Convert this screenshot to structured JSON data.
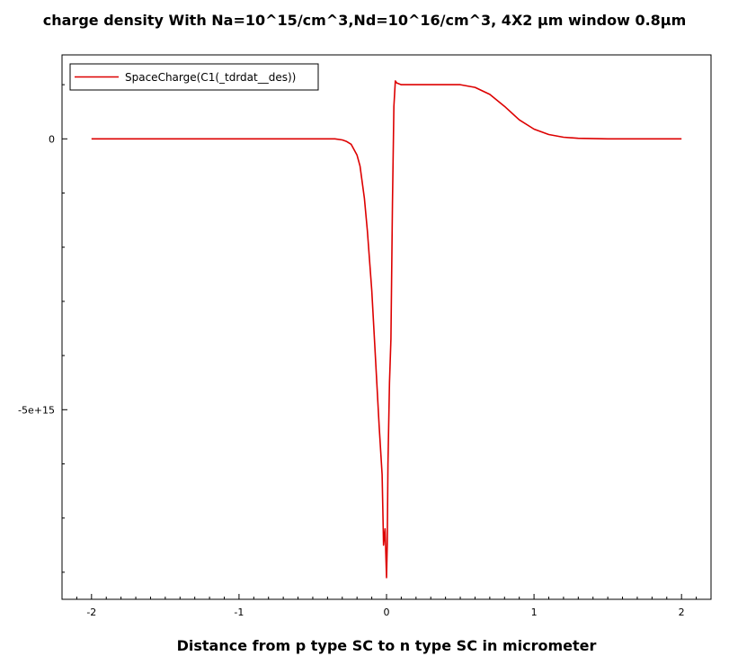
{
  "chart_data": {
    "type": "line",
    "title": "charge density With Na=10^15/cm^3,Nd=10^16/cm^3, 4X2 µm window 0.8µm",
    "xlabel": "Distance from p type SC to n type SC in micrometer",
    "ylabel": "",
    "xlim": [
      -2.2,
      2.2
    ],
    "ylim": [
      -8500000000000000.0,
      1550000000000000.0
    ],
    "x_ticks": [
      {
        "value": -2,
        "label": "-2"
      },
      {
        "value": -1,
        "label": "-1"
      },
      {
        "value": 0,
        "label": "0"
      },
      {
        "value": 1,
        "label": "1"
      },
      {
        "value": 2,
        "label": "2"
      }
    ],
    "y_ticks": [
      {
        "value": 0,
        "label": "0"
      },
      {
        "value": -5000000000000000.0,
        "label": "-5e+15"
      }
    ],
    "legend": {
      "position": "top-left"
    },
    "grid": false,
    "series": [
      {
        "name": "SpaceCharge(C1(_tdrdat__des))",
        "color": "#dd0000",
        "x": [
          -2,
          -1.5,
          -1,
          -0.5,
          -0.35,
          -0.3,
          -0.27,
          -0.24,
          -0.2,
          -0.18,
          -0.15,
          -0.13,
          -0.1,
          -0.08,
          -0.05,
          -0.03,
          -0.02,
          -0.01,
          0,
          0.005,
          0.01,
          0.02,
          0.03,
          0.04,
          0.05,
          0.06,
          0.07,
          0.1,
          0.15,
          0.3,
          0.5,
          0.6,
          0.7,
          0.8,
          0.9,
          1.0,
          1.1,
          1.2,
          1.3,
          1.5,
          1.7,
          2
        ],
        "y": [
          0,
          0,
          0,
          0,
          0,
          -20000000000000.0,
          -50000000000000.0,
          -100000000000000.0,
          -300000000000000.0,
          -500000000000000.0,
          -1100000000000000.0,
          -1700000000000000.0,
          -2800000000000000.0,
          -3800000000000000.0,
          -5300000000000000.0,
          -6200000000000000.0,
          -7500000000000000.0,
          -7200000000000000.0,
          -8100000000000000.0,
          -7500000000000000.0,
          -6000000000000000.0,
          -4500000000000000.0,
          -3700000000000000.0,
          -1200000000000000.0,
          600000000000000.0,
          1070000000000000.0,
          1030000000000000.0,
          1000000000000000.0,
          1000000000000000.0,
          1000000000000000.0,
          1000000000000000.0,
          950000000000000.0,
          820000000000000.0,
          600000000000000.0,
          350000000000000.0,
          180000000000000.0,
          80000000000000.0,
          30000000000000.0,
          10000000000000.0,
          0,
          0,
          0
        ]
      }
    ]
  }
}
